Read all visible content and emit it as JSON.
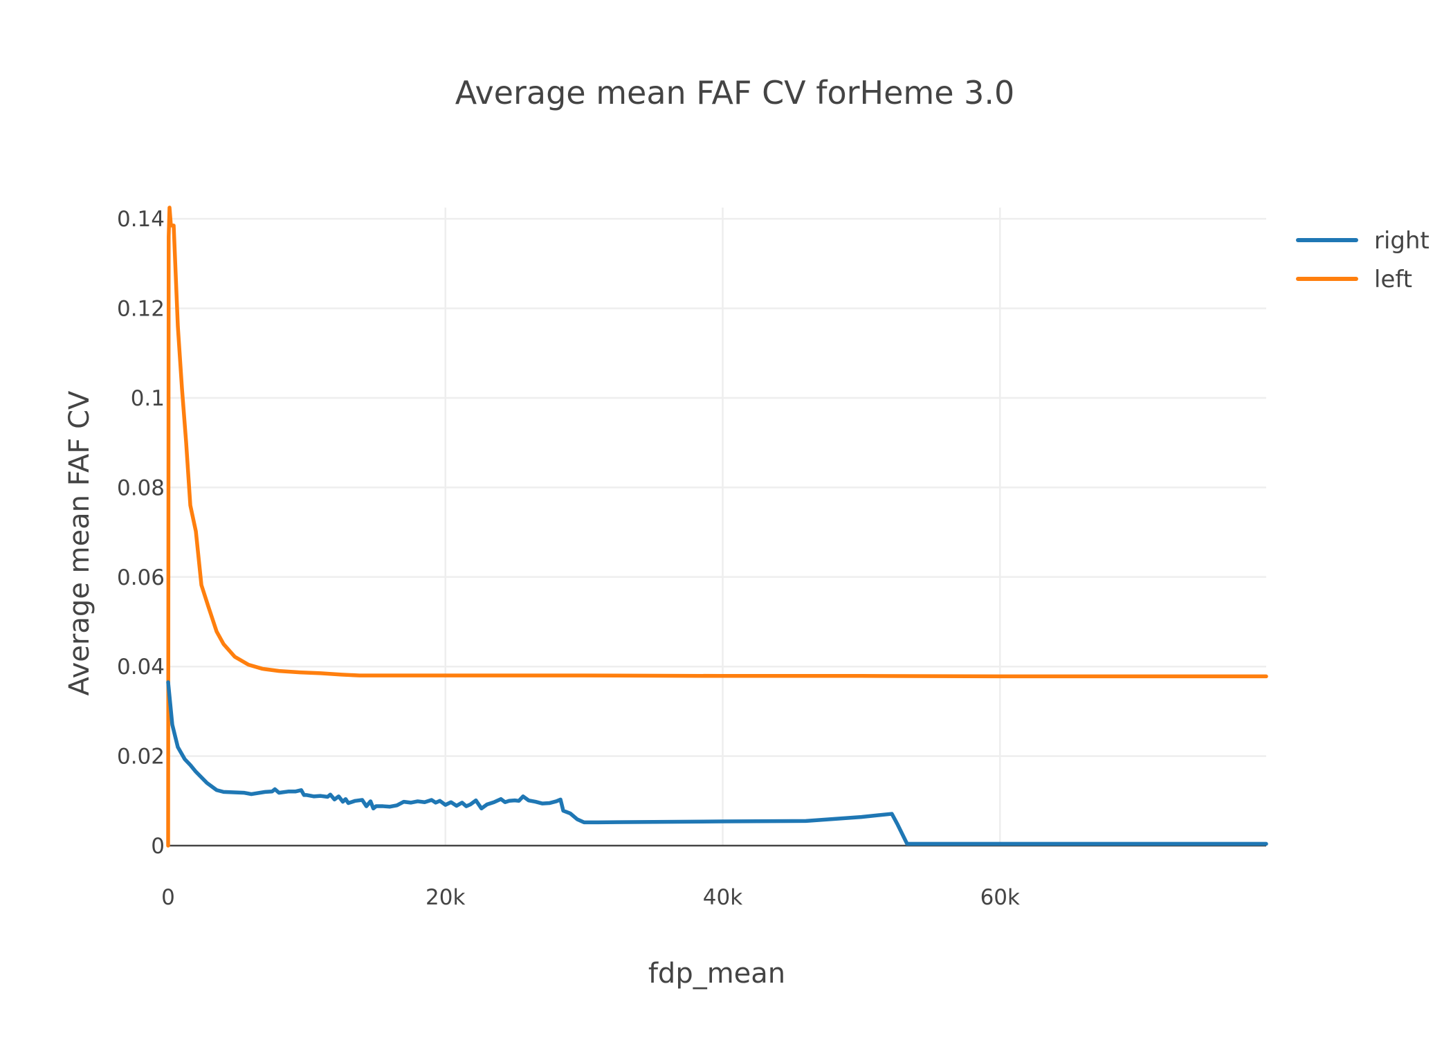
{
  "chart_data": {
    "type": "line",
    "title": "Average mean FAF CV forHeme 3.0",
    "xlabel": "fdp_mean",
    "ylabel": "Average mean FAF CV",
    "xlim": [
      0,
      79200
    ],
    "ylim": [
      0,
      0.1425
    ],
    "x_ticks": [
      {
        "value": 0,
        "label": "0"
      },
      {
        "value": 20000,
        "label": "20k"
      },
      {
        "value": 40000,
        "label": "40k"
      },
      {
        "value": 60000,
        "label": "60k"
      }
    ],
    "y_ticks": [
      {
        "value": 0,
        "label": "0"
      },
      {
        "value": 0.02,
        "label": "0.02"
      },
      {
        "value": 0.04,
        "label": "0.04"
      },
      {
        "value": 0.06,
        "label": "0.06"
      },
      {
        "value": 0.08,
        "label": "0.08"
      },
      {
        "value": 0.1,
        "label": "0.1"
      },
      {
        "value": 0.12,
        "label": "0.12"
      },
      {
        "value": 0.14,
        "label": "0.14"
      }
    ],
    "grid": true,
    "legend_position": "top-right",
    "series": [
      {
        "name": "right",
        "color": "#1f77b4",
        "x": [
          0,
          300,
          700,
          1200,
          1600,
          2000,
          2800,
          3500,
          4000,
          5500,
          6000,
          7000,
          7500,
          7700,
          8000,
          8700,
          9200,
          9600,
          9800,
          10000,
          10500,
          11000,
          11500,
          11700,
          12000,
          12300,
          12600,
          12800,
          13000,
          13500,
          14000,
          14300,
          14600,
          14800,
          15000,
          15500,
          16000,
          16500,
          17000,
          17500,
          18000,
          18500,
          19000,
          19300,
          19600,
          20000,
          20400,
          20800,
          21200,
          21500,
          21800,
          22200,
          22600,
          23000,
          23500,
          24000,
          24300,
          24600,
          25000,
          25300,
          25600,
          26000,
          26500,
          27000,
          27500,
          28000,
          28300,
          28500,
          29000,
          29500,
          30000,
          31000,
          35000,
          40000,
          46000,
          50000,
          52200,
          52600,
          53300,
          55000,
          79200
        ],
        "y": [
          0.0365,
          0.027,
          0.022,
          0.0193,
          0.018,
          0.0165,
          0.014,
          0.0124,
          0.012,
          0.0118,
          0.0115,
          0.012,
          0.0121,
          0.0126,
          0.0118,
          0.0121,
          0.0121,
          0.0124,
          0.0113,
          0.0113,
          0.011,
          0.0111,
          0.0109,
          0.0114,
          0.0103,
          0.011,
          0.0098,
          0.0104,
          0.0095,
          0.01,
          0.0102,
          0.0088,
          0.0099,
          0.0083,
          0.0088,
          0.0088,
          0.0087,
          0.009,
          0.0098,
          0.0096,
          0.0099,
          0.0097,
          0.0102,
          0.0096,
          0.01,
          0.0091,
          0.0097,
          0.0089,
          0.0096,
          0.0088,
          0.0092,
          0.0101,
          0.0083,
          0.0092,
          0.0097,
          0.0104,
          0.0097,
          0.01,
          0.0101,
          0.01,
          0.011,
          0.0101,
          0.0098,
          0.0094,
          0.0095,
          0.0099,
          0.0103,
          0.0078,
          0.0072,
          0.0059,
          0.0052,
          0.0052,
          0.0053,
          0.0054,
          0.0055,
          0.0064,
          0.0071,
          0.0048,
          0.0004,
          0.0004,
          0.0004
        ]
      },
      {
        "name": "left",
        "color": "#ff7f0e",
        "x": [
          0,
          40,
          100,
          200,
          400,
          700,
          1000,
          1300,
          1600,
          2000,
          2400,
          2900,
          3500,
          4000,
          4800,
          5800,
          6800,
          8000,
          9500,
          11000,
          12500,
          13800,
          15000,
          20000,
          30000,
          40000,
          50000,
          60000,
          70000,
          79200
        ],
        "y": [
          0,
          0.136,
          0.1425,
          0.1385,
          0.1385,
          0.116,
          0.102,
          0.09,
          0.076,
          0.0702,
          0.0582,
          0.0534,
          0.0478,
          0.045,
          0.0422,
          0.0404,
          0.0395,
          0.039,
          0.0387,
          0.0385,
          0.0382,
          0.038,
          0.038,
          0.038,
          0.038,
          0.0379,
          0.0379,
          0.0378,
          0.0378,
          0.0378
        ]
      }
    ]
  }
}
